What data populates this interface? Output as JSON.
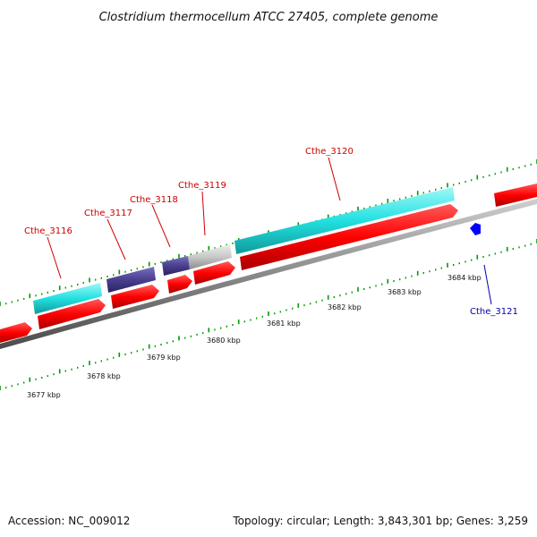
{
  "title": "Clostridium thermocellum ATCC 27405, complete genome",
  "footer": {
    "accession": "Accession: NC_009012",
    "summary": "Topology: circular; Length: 3,843,301 bp; Genes: 3,259"
  },
  "scale": {
    "tick_labels": [
      "3677 kbp",
      "3678 kbp",
      "3679 kbp",
      "3680 kbp",
      "3681 kbp",
      "3682 kbp",
      "3683 kbp",
      "3684 kbp"
    ]
  },
  "genes": {
    "labels": [
      "Cthe_3116",
      "Cthe_3117",
      "Cthe_3118",
      "Cthe_3119",
      "Cthe_3120",
      "Cthe_3121"
    ]
  },
  "colors": {
    "cds": "#ff0000",
    "cog_cyan": "#22e0e0",
    "cog_purple": "#4a3f8f",
    "cog_grey": "#bdbdbd",
    "reverse_gene": "#0000ff",
    "backbone": "#8a8a8a",
    "tick": "#009900",
    "label_fwd": "#cc0000",
    "label_rev": "#0000aa"
  }
}
